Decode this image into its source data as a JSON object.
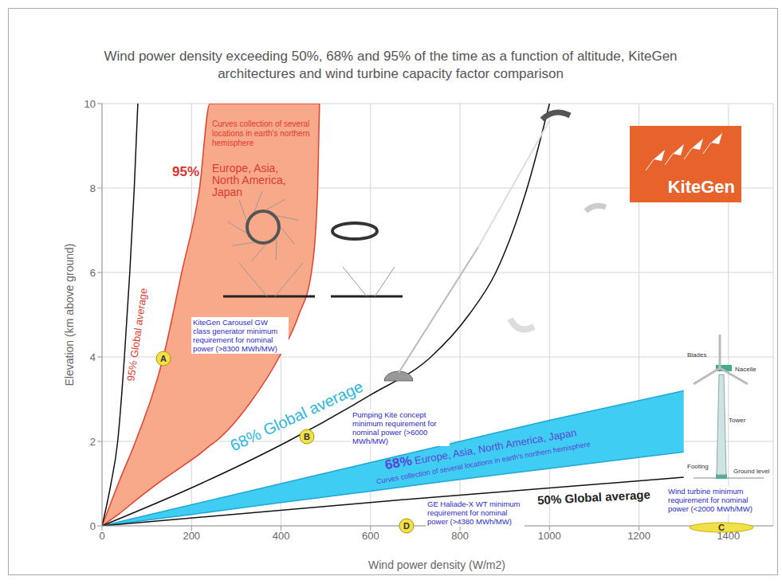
{
  "chart_data": {
    "type": "line",
    "title": "Wind power density exceeding 50%, 68% and 95% of the time as a function of altitude, KiteGen architectures and wind turbine capacity factor comparison",
    "x_label": "Wind power density (W/m2)",
    "y_label": "Elevation (km above ground)",
    "xlim": [
      0,
      1500
    ],
    "xticks": [
      0,
      200,
      400,
      600,
      800,
      1000,
      1200,
      1400
    ],
    "ylim": [
      0,
      10
    ],
    "yticks": [
      0,
      2,
      4,
      6,
      8,
      10
    ],
    "grid": true,
    "series": [
      {
        "name": "95% Global average",
        "type": "line",
        "color": "#111111",
        "x": [
          0,
          20,
          35,
          50,
          62,
          72,
          80
        ],
        "values": [
          0,
          1,
          2,
          4,
          6,
          8,
          10
        ]
      },
      {
        "label": "95%",
        "name": "Europe, Asia, North America, Japan",
        "description": "Curves collection of several locations in earth's northern hemisphere",
        "type": "area",
        "color": "#f8a98a",
        "x": [
          0,
          40,
          75,
          137,
          178,
          218,
          241,
          254,
          330,
          396,
          440,
          468,
          482,
          486
        ],
        "values": [
          [
            0,
            0
          ],
          [
            0.3,
            1.1
          ],
          [
            0.6,
            2
          ],
          [
            1.1,
            4
          ],
          [
            1.4,
            6
          ],
          [
            1.7,
            8
          ],
          [
            1.9,
            10
          ],
          [
            2,
            10
          ],
          [
            2.9,
            10
          ],
          [
            4,
            10
          ],
          [
            5,
            10
          ],
          [
            6,
            10
          ],
          [
            8,
            10
          ],
          [
            10,
            10
          ]
        ]
      },
      {
        "name": "68% Global average",
        "type": "line",
        "color": "#111111",
        "x": [
          0,
          200,
          415,
          600,
          735,
          820,
          880,
          950,
          1000
        ],
        "values": [
          0,
          0.9,
          2,
          3.1,
          4,
          5,
          6,
          8,
          10
        ]
      },
      {
        "label": "68%",
        "name": "Europe, Asia, North America, Japan",
        "description": "Curves collection of several locations in earth's northern hemisphere",
        "type": "area",
        "color": "#3fcdf3",
        "x": [
          0,
          200,
          400,
          600,
          800,
          1000,
          1300
        ],
        "values": [
          [
            0,
            0
          ],
          [
            0.27,
            0.5
          ],
          [
            0.55,
            1
          ],
          [
            0.82,
            1.5
          ],
          [
            1.1,
            2
          ],
          [
            1.36,
            2.5
          ],
          [
            1.75,
            3.2
          ]
        ]
      },
      {
        "name": "50% Global average",
        "type": "line",
        "color": "#111111",
        "x": [
          0,
          650,
          1300
        ],
        "values": [
          0,
          0.6,
          1.15
        ]
      }
    ],
    "annotations": [
      {
        "marker": "A",
        "text": "KiteGen Carousel GW class generator minimum requirement for nominal power (>8300 MWh/MW)"
      },
      {
        "marker": "B",
        "text": "Pumping Kite concept minimum requirement for nominal power (>6000 MWh/MW)"
      },
      {
        "marker": "C",
        "text": "Wind turbine minimum requirement for nominal power (<2000 MWh/MW)"
      },
      {
        "marker": "D",
        "text": "GE Haliade-X WT minimum requirement for nominal power (>4380 MWh/MW)"
      }
    ],
    "diagram_labels": [
      "Blades",
      "Nacelle",
      "Tower",
      "Footing",
      "Ground level"
    ],
    "logo": "KiteGen"
  }
}
